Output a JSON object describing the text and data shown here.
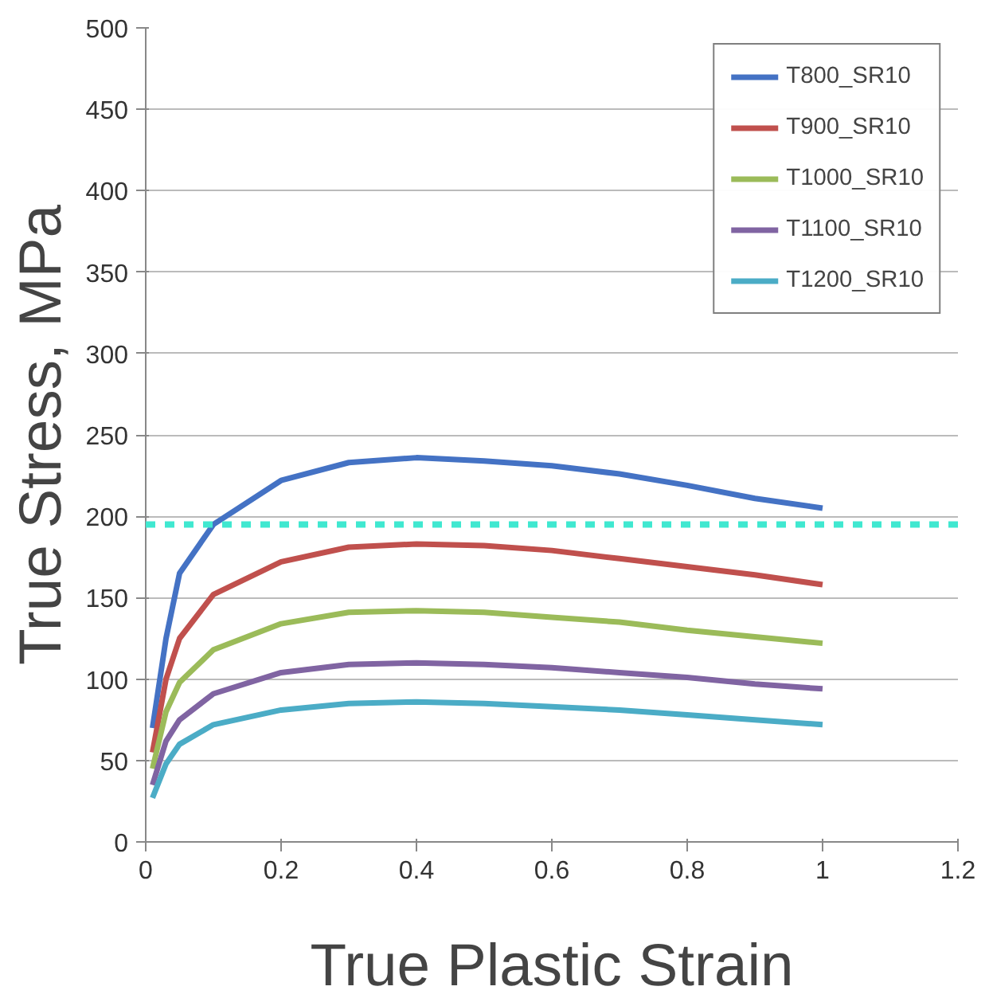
{
  "chart_data": {
    "type": "line",
    "xlabel": "True Plastic Strain",
    "ylabel": "True Stress, MPa",
    "x": [
      0.01,
      0.03,
      0.05,
      0.1,
      0.2,
      0.3,
      0.4,
      0.5,
      0.6,
      0.7,
      0.8,
      0.9,
      1.0
    ],
    "series": [
      {
        "name": "T800_SR10",
        "color": "#4472c4",
        "values": [
          70,
          125,
          165,
          195,
          222,
          233,
          236,
          234,
          231,
          226,
          219,
          211,
          205
        ]
      },
      {
        "name": "T900_SR10",
        "color": "#c0504d",
        "values": [
          55,
          100,
          125,
          152,
          172,
          181,
          183,
          182,
          179,
          174,
          169,
          164,
          158
        ]
      },
      {
        "name": "T1000_SR10",
        "color": "#9bbb59",
        "values": [
          45,
          80,
          98,
          118,
          134,
          141,
          142,
          141,
          138,
          135,
          130,
          126,
          122
        ]
      },
      {
        "name": "T1100_SR10",
        "color": "#8064a2",
        "values": [
          35,
          62,
          75,
          91,
          104,
          109,
          110,
          109,
          107,
          104,
          101,
          97,
          94
        ]
      },
      {
        "name": "T1200_SR10",
        "color": "#4bacc6",
        "values": [
          27,
          48,
          60,
          72,
          81,
          85,
          86,
          85,
          83,
          81,
          78,
          75,
          72
        ]
      }
    ],
    "xlim": [
      0,
      1.2
    ],
    "xticks": [
      0,
      0.2,
      0.4,
      0.6,
      0.8,
      1,
      1.2
    ],
    "ylim": [
      0,
      500
    ],
    "yticks": [
      0,
      50,
      100,
      150,
      200,
      250,
      300,
      350,
      400,
      450,
      500
    ],
    "ref_lines": [
      {
        "axis": "y",
        "value": 195,
        "color": "#40e8d0",
        "line_style": "dashed"
      }
    ],
    "grid": "y",
    "legend": "top right",
    "marker": "none",
    "line_style": "solid"
  }
}
